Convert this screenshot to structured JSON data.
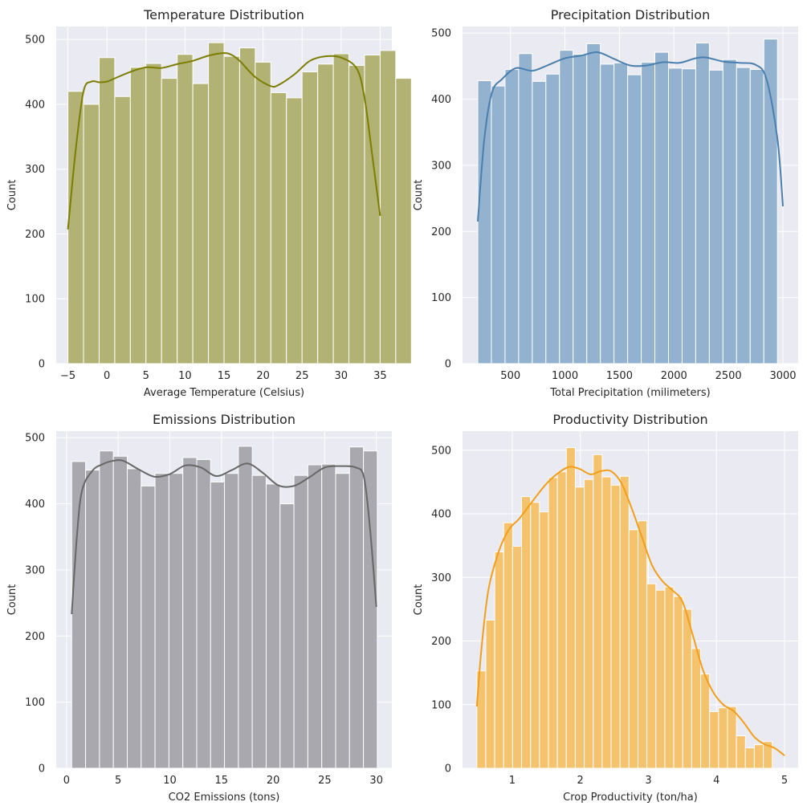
{
  "chart_data": [
    {
      "type": "bar",
      "title": "Temperature Distribution",
      "xlabel": "Average Temperature (Celsius)",
      "ylabel": "Count",
      "xlim": [
        -6.5,
        36.5
      ],
      "ylim": [
        0,
        520
      ],
      "xticks": [
        -5,
        0,
        5,
        10,
        15,
        20,
        25,
        30,
        35
      ],
      "yticks": [
        0,
        100,
        200,
        300,
        400,
        500
      ],
      "bin_start": -5,
      "bin_width": 2,
      "values": [
        420,
        400,
        472,
        412,
        457,
        463,
        440,
        477,
        432,
        495,
        474,
        487,
        465,
        418,
        410,
        450,
        462,
        478,
        460,
        476,
        483,
        440
      ],
      "bar_color": "#b2b275",
      "kde_color": "#7d7d00",
      "kde_x": [
        -5,
        -4,
        -3,
        -2,
        -1,
        0,
        1,
        3,
        5,
        7,
        9,
        11,
        13,
        15,
        16,
        17,
        19,
        21,
        22,
        24,
        26,
        28,
        30,
        32,
        33,
        34,
        35
      ],
      "kde_y": [
        207,
        330,
        420,
        435,
        434,
        435,
        440,
        450,
        457,
        456,
        462,
        467,
        475,
        479,
        476,
        467,
        442,
        428,
        430,
        446,
        467,
        474,
        472,
        455,
        410,
        320,
        228
      ],
      "grid": true
    },
    {
      "type": "bar",
      "title": "Precipitation Distribution",
      "xlabel": "Total Precipitation (milimeters)",
      "ylabel": "Count",
      "xlim": [
        60,
        3140
      ],
      "ylim": [
        0,
        510
      ],
      "xticks": [
        500,
        1000,
        1500,
        2000,
        2500,
        3000
      ],
      "yticks": [
        0,
        100,
        200,
        300,
        400,
        500
      ],
      "bin_start": 200,
      "bin_width": 125,
      "values": [
        428,
        420,
        445,
        469,
        427,
        438,
        474,
        468,
        484,
        453,
        455,
        437,
        456,
        471,
        447,
        446,
        485,
        444,
        460,
        448,
        445,
        491
      ],
      "bar_color": "#92b2d0",
      "kde_color": "#4a7fae",
      "kde_x": [
        200,
        260,
        330,
        420,
        550,
        700,
        850,
        1000,
        1150,
        1300,
        1450,
        1600,
        1750,
        1900,
        2050,
        2200,
        2300,
        2450,
        2600,
        2750,
        2850,
        2950,
        3000
      ],
      "kde_y": [
        215,
        340,
        410,
        430,
        447,
        443,
        452,
        462,
        466,
        471,
        461,
        451,
        451,
        456,
        455,
        462,
        463,
        457,
        455,
        452,
        430,
        340,
        238
      ],
      "grid": true
    },
    {
      "type": "bar",
      "title": "Emissions Distribution",
      "xlabel": "CO2 Emissions (tons)",
      "ylabel": "Count",
      "xlim": [
        -1.0,
        31.5
      ],
      "ylim": [
        0,
        510
      ],
      "xticks": [
        0,
        5,
        10,
        15,
        20,
        25,
        30
      ],
      "yticks": [
        0,
        100,
        200,
        300,
        400,
        500
      ],
      "bin_start": 0.5,
      "bin_width": 1.345,
      "values": [
        464,
        451,
        480,
        472,
        453,
        427,
        446,
        446,
        470,
        467,
        433,
        446,
        487,
        443,
        430,
        400,
        443,
        459,
        460,
        446,
        486,
        480
      ],
      "bar_color": "#a8a8ae",
      "kde_color": "#676767",
      "kde_x": [
        0.5,
        1.0,
        1.5,
        2.5,
        3.5,
        4.5,
        5.5,
        7,
        8.5,
        10,
        11.5,
        13,
        14.5,
        16,
        17.5,
        19,
        20.5,
        22,
        23.5,
        25,
        26.5,
        28,
        28.8,
        29.4,
        30
      ],
      "kde_y": [
        233,
        350,
        420,
        450,
        460,
        465,
        465,
        452,
        441,
        445,
        458,
        455,
        442,
        451,
        461,
        447,
        428,
        427,
        440,
        455,
        457,
        455,
        440,
        360,
        244
      ],
      "grid": true
    },
    {
      "type": "bar",
      "title": "Productivity Distribution",
      "xlabel": "Crop Productivity (ton/ha)",
      "ylabel": "Count",
      "xlim": [
        0.27,
        5.2
      ],
      "ylim": [
        0,
        530
      ],
      "xticks": [
        1,
        2,
        3,
        4,
        5
      ],
      "yticks": [
        0,
        100,
        200,
        300,
        400,
        500
      ],
      "bin_start": 0.48,
      "bin_width": 0.1315,
      "values": [
        153,
        233,
        340,
        386,
        349,
        427,
        418,
        403,
        457,
        466,
        504,
        442,
        454,
        493,
        458,
        445,
        459,
        375,
        389,
        290,
        280,
        285,
        270,
        250,
        188,
        148,
        89,
        95,
        97,
        51,
        32,
        37,
        42
      ],
      "bar_color": "#f5c26d",
      "kde_color": "#f29e1a",
      "kde_x": [
        0.48,
        0.55,
        0.65,
        0.8,
        0.95,
        1.1,
        1.3,
        1.5,
        1.7,
        1.85,
        2.0,
        2.15,
        2.3,
        2.45,
        2.6,
        2.75,
        2.9,
        3.05,
        3.2,
        3.35,
        3.5,
        3.65,
        3.8,
        3.95,
        4.1,
        4.25,
        4.4,
        4.55,
        4.7,
        4.85,
        5.0
      ],
      "kde_y": [
        97,
        190,
        280,
        340,
        375,
        392,
        420,
        447,
        466,
        474,
        470,
        462,
        467,
        467,
        449,
        410,
        365,
        320,
        295,
        280,
        262,
        210,
        155,
        120,
        100,
        90,
        72,
        50,
        38,
        32,
        20
      ],
      "grid": true
    }
  ]
}
